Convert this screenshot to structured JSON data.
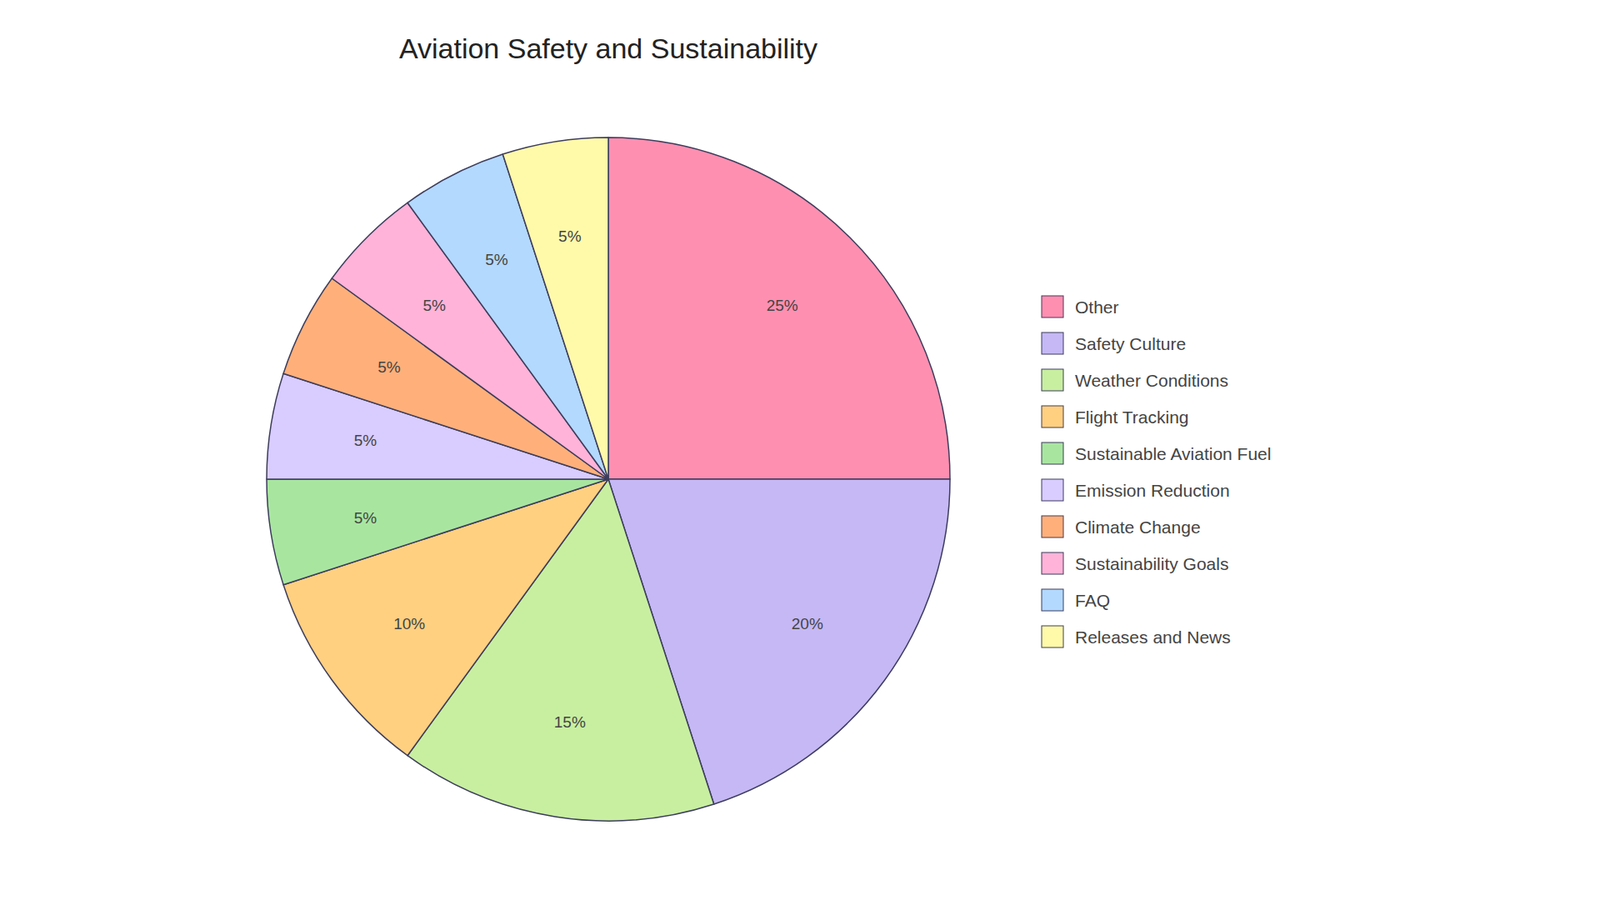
{
  "chart_data": {
    "type": "pie",
    "title": "Aviation Safety and Sustainability",
    "categories": [
      "Other",
      "Safety Culture",
      "Weather Conditions",
      "Flight Tracking",
      "Sustainable Aviation Fuel",
      "Emission Reduction",
      "Climate Change",
      "Sustainability Goals",
      "FAQ",
      "Releases and News"
    ],
    "values": [
      25,
      20,
      15,
      10,
      5,
      5,
      5,
      5,
      5,
      5
    ],
    "value_labels": [
      "25%",
      "20%",
      "15%",
      "10%",
      "5%",
      "5%",
      "5%",
      "5%",
      "5%",
      "5%"
    ],
    "colors": [
      "#FF8FB1",
      "#C5B8F5",
      "#C8EFA0",
      "#FFD080",
      "#A8E6A0",
      "#D9CCFF",
      "#FFB07A",
      "#FFB3D9",
      "#B3D9FF",
      "#FFFAAA"
    ],
    "data_labels": true,
    "legend": "right"
  }
}
